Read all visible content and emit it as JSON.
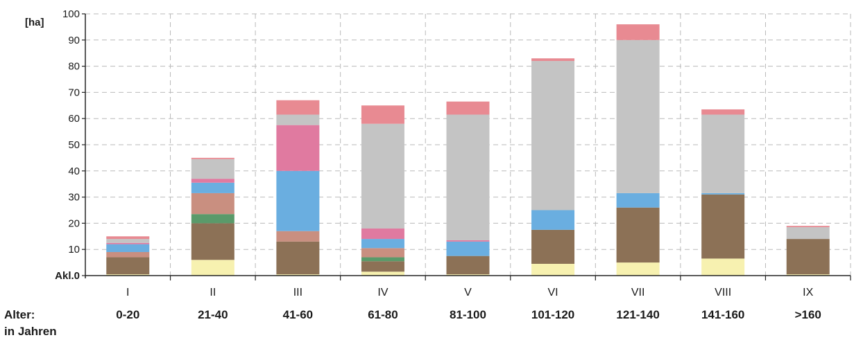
{
  "chart_data": {
    "type": "bar",
    "stacked": true,
    "y_unit": "[ha]",
    "ylim": [
      0,
      100
    ],
    "yticks": [
      0,
      10,
      20,
      30,
      40,
      50,
      60,
      70,
      80,
      90,
      100
    ],
    "zero_tick_prefix": "Akl.",
    "grid": true,
    "categories": [
      "I",
      "II",
      "III",
      "IV",
      "V",
      "VI",
      "VII",
      "VIII",
      "IX"
    ],
    "age_label_title": "Alter:",
    "age_label_subtitle": "in Jahren",
    "age_classes": [
      "0-20",
      "21-40",
      "41-60",
      "61-80",
      "81-100",
      "101-120",
      "121-140",
      "141-160",
      ">160"
    ],
    "series": [
      {
        "color": "#f7f1b0",
        "values": [
          0.5,
          6,
          0.5,
          1.5,
          0.5,
          4.5,
          5,
          6.5,
          0.5
        ]
      },
      {
        "color": "#8c7156",
        "values": [
          6.5,
          14,
          12.5,
          4,
          7,
          13,
          21,
          24.5,
          13.5
        ]
      },
      {
        "color": "#5a9a6a",
        "values": [
          0,
          3.5,
          0,
          1.5,
          0,
          0,
          0,
          0,
          0
        ]
      },
      {
        "color": "#c98f80",
        "values": [
          2,
          8,
          4,
          3.5,
          0,
          0,
          0,
          0,
          0
        ]
      },
      {
        "color": "#6aaee0",
        "values": [
          3,
          4,
          23,
          3.5,
          5.5,
          7.5,
          5.5,
          0.5,
          0
        ]
      },
      {
        "color": "#e07aa0",
        "values": [
          0.5,
          1.5,
          17.5,
          4,
          0.5,
          0,
          0,
          0,
          0
        ]
      },
      {
        "color": "#c4c4c4",
        "values": [
          1.5,
          7.5,
          4,
          40,
          48,
          57,
          58.5,
          30,
          4.5
        ]
      },
      {
        "color": "#e88a92",
        "values": [
          1,
          0.5,
          5.5,
          7,
          5,
          1,
          6,
          2,
          0.5
        ]
      }
    ]
  }
}
